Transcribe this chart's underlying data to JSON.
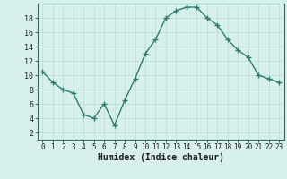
{
  "x": [
    0,
    1,
    2,
    3,
    4,
    5,
    6,
    7,
    8,
    9,
    10,
    11,
    12,
    13,
    14,
    15,
    16,
    17,
    18,
    19,
    20,
    21,
    22,
    23
  ],
  "y": [
    10.5,
    9.0,
    8.0,
    7.5,
    4.5,
    4.0,
    6.0,
    3.0,
    6.5,
    9.5,
    13.0,
    15.0,
    18.0,
    19.0,
    19.5,
    19.5,
    18.0,
    17.0,
    15.0,
    13.5,
    12.5,
    10.0,
    9.5,
    9.0
  ],
  "xlim": [
    -0.5,
    23.5
  ],
  "ylim": [
    1,
    20
  ],
  "yticks": [
    2,
    4,
    6,
    8,
    10,
    12,
    14,
    16,
    18
  ],
  "xticks": [
    0,
    1,
    2,
    3,
    4,
    5,
    6,
    7,
    8,
    9,
    10,
    11,
    12,
    13,
    14,
    15,
    16,
    17,
    18,
    19,
    20,
    21,
    22,
    23
  ],
  "xlabel": "Humidex (Indice chaleur)",
  "line_color": "#2d7d6f",
  "marker": "+",
  "marker_size": 4,
  "bg_color": "#d8f0ec",
  "grid_color": "#b8ddd6",
  "title": ""
}
